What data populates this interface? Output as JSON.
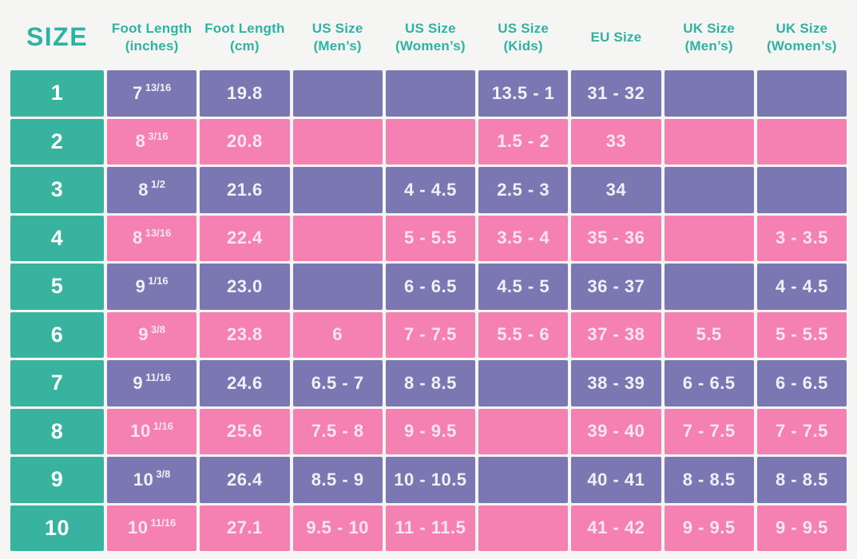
{
  "colors": {
    "header_text": "#2eb3a3",
    "teal_cell": "#38b3a0",
    "purple_cell": "#7b77b3",
    "pink_cell": "#f481b2",
    "background": "#f5f6f4"
  },
  "chart_data": {
    "type": "table",
    "title": "SIZE",
    "columns": [
      "SIZE",
      "Foot Length\n(inches)",
      "Foot Length\n(cm)",
      "US Size\n(Men’s)",
      "US Size\n(Women’s)",
      "US Size\n(Kids)",
      "EU Size",
      "UK Size\n(Men’s)",
      "UK Size\n(Women’s)"
    ],
    "rows": [
      [
        "1",
        "7 13/16",
        "19.8",
        "",
        "",
        "13.5 - 1",
        "31 - 32",
        "",
        ""
      ],
      [
        "2",
        "8 3/16",
        "20.8",
        "",
        "",
        "1.5 - 2",
        "33",
        "",
        ""
      ],
      [
        "3",
        "8 1/2",
        "21.6",
        "",
        "4 - 4.5",
        "2.5 - 3",
        "34",
        "",
        ""
      ],
      [
        "4",
        "8 13/16",
        "22.4",
        "",
        "5 - 5.5",
        "3.5 - 4",
        "35 - 36",
        "",
        "3 - 3.5"
      ],
      [
        "5",
        "9 1/16",
        "23.0",
        "",
        "6 - 6.5",
        "4.5 - 5",
        "36 - 37",
        "",
        "4 - 4.5"
      ],
      [
        "6",
        "9 3/8",
        "23.8",
        "6",
        "7 - 7.5",
        "5.5 - 6",
        "37 - 38",
        "5.5",
        "5 - 5.5"
      ],
      [
        "7",
        "9 11/16",
        "24.6",
        "6.5 - 7",
        "8 - 8.5",
        "",
        "38 - 39",
        "6 - 6.5",
        "6 - 6.5"
      ],
      [
        "8",
        "10 1/16",
        "25.6",
        "7.5 - 8",
        "9 - 9.5",
        "",
        "39 - 40",
        "7 - 7.5",
        "7 - 7.5"
      ],
      [
        "9",
        "10 3/8",
        "26.4",
        "8.5 - 9",
        "10 - 10.5",
        "",
        "40 - 41",
        "8 - 8.5",
        "8 - 8.5"
      ],
      [
        "10",
        "10 11/16",
        "27.1",
        "9.5 - 10",
        "11 - 11.5",
        "",
        "41 - 42",
        "9 - 9.5",
        "9 - 9.5"
      ]
    ]
  }
}
